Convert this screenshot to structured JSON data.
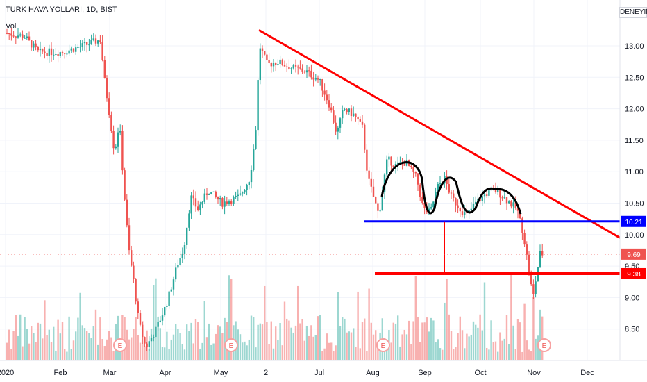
{
  "header": {
    "symbol": "TURK HAVA YOLLARI, 1D, BIST",
    "volume_label": "Vol",
    "corner_badge": "DENEYİN"
  },
  "colors": {
    "up": "#26a69a",
    "down": "#ef5350",
    "trendline": "#ff0000",
    "support": "#0000ff",
    "target": "#ff0000",
    "pattern": "#000000",
    "last_price_tag": "#ef5350",
    "grid": "#f0f3fa"
  },
  "chart_data": {
    "type": "candlestick",
    "y_ticks": [
      "13.00",
      "12.50",
      "12.00",
      "11.50",
      "11.00",
      "10.50",
      "10.00",
      "9.50",
      "9.00",
      "8.50"
    ],
    "x_ticks": [
      "2020",
      "Feb",
      "Mar",
      "Apr",
      "May",
      "2",
      "Jul",
      "Aug",
      "Sep",
      "Oct",
      "Nov",
      "Dec"
    ],
    "ylim": [
      8.0,
      13.6
    ],
    "price_tags": [
      {
        "label": "10.21",
        "value": 10.21,
        "color": "#0000ff"
      },
      {
        "label": "9.69",
        "value": 9.69,
        "color": "#ef5350"
      },
      {
        "label": "9.38",
        "value": 9.38,
        "color": "#ff0000"
      }
    ],
    "earnings_markers": {
      "label": "E",
      "dates": [
        "Mar",
        "May",
        "Aug",
        "Nov"
      ]
    },
    "annotations": {
      "descending_trendline": {
        "from": {
          "date": "May",
          "price": 13.25
        },
        "to": {
          "date": "Dec",
          "price": 9.95
        }
      },
      "support_line": {
        "price": 10.21
      },
      "target_line": {
        "price": 9.38
      },
      "pattern": "wave pattern above support (Aug–Oct)"
    }
  }
}
